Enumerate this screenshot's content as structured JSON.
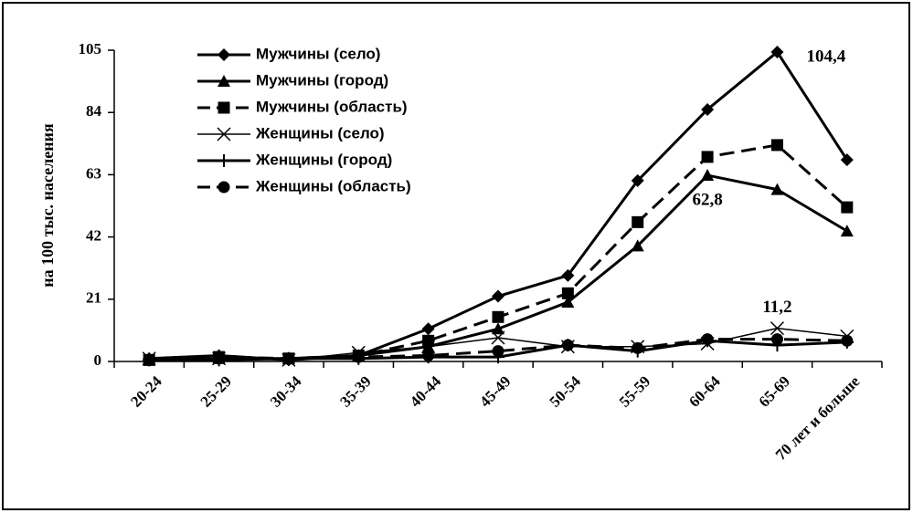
{
  "chart_data": {
    "type": "line",
    "ylabel": "на 100 тыс. населения",
    "xlabel": "",
    "ylim": [
      0,
      105
    ],
    "yticks": [
      "0",
      "21",
      "42",
      "63",
      "84",
      "105"
    ],
    "categories": [
      "20-24",
      "25-29",
      "30-34",
      "35-39",
      "40-44",
      "45-49",
      "50-54",
      "55-59",
      "60-64",
      "65-69",
      "70 лет и больше"
    ],
    "legend_position": "top-left",
    "grid": false,
    "series": [
      {
        "name": "Мужчины (село)",
        "marker": "diamond",
        "dash": "solid",
        "width": 3,
        "values": [
          1,
          2,
          0.5,
          2,
          11,
          22,
          29,
          61,
          85,
          104.4,
          68
        ]
      },
      {
        "name": "Мужчины (город)",
        "marker": "triangle",
        "dash": "solid",
        "width": 3,
        "values": [
          0.5,
          1,
          1,
          2,
          5,
          11,
          20,
          39,
          62.8,
          58,
          44
        ]
      },
      {
        "name": "Мужчины (область)",
        "marker": "square",
        "dash": "dashed",
        "width": 3,
        "values": [
          0.5,
          1.5,
          1,
          2,
          7,
          15,
          23,
          47,
          69,
          73,
          52
        ]
      },
      {
        "name": "Женщины (село)",
        "marker": "x",
        "dash": "solid",
        "width": 1.5,
        "values": [
          1,
          1,
          0.5,
          3,
          5,
          8,
          5,
          5,
          6,
          11.2,
          8.5
        ]
      },
      {
        "name": "Женщины (город)",
        "marker": "plus",
        "dash": "solid",
        "width": 3,
        "values": [
          0.5,
          0.5,
          1,
          1,
          1.5,
          1.5,
          5.5,
          3.5,
          7,
          5.5,
          6.5
        ]
      },
      {
        "name": "Женщины (область)",
        "marker": "circle",
        "dash": "dashed",
        "width": 3,
        "values": [
          0.5,
          1,
          1,
          1.5,
          2,
          3.5,
          5.5,
          4.5,
          7.5,
          7.5,
          7
        ]
      }
    ],
    "annotations": [
      {
        "text": "104,4",
        "series": 0,
        "index": 9
      },
      {
        "text": "62,8",
        "series": 1,
        "index": 8
      },
      {
        "text": "11,2",
        "series": 3,
        "index": 9
      }
    ]
  }
}
